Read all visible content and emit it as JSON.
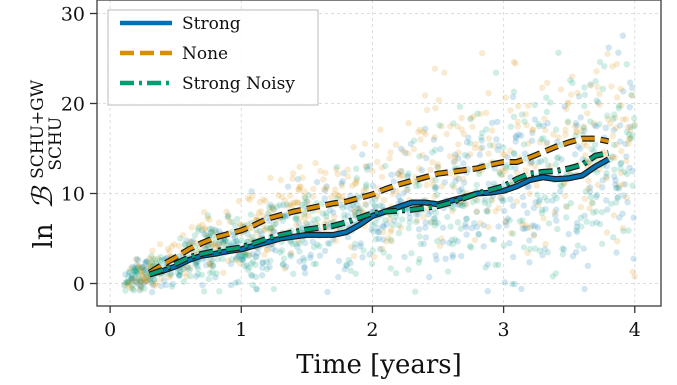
{
  "chart_data": {
    "type": "line",
    "xlabel": "Time [years]",
    "ylabel": {
      "prefix": "ln",
      "symbol": "ℬ",
      "superscript": "SCHU+GW",
      "subscript": "SCHU"
    },
    "xlim": [
      -0.1,
      4.2
    ],
    "ylim": [
      -2.5,
      31.5
    ],
    "xticks": [
      0,
      1,
      2,
      3,
      4
    ],
    "yticks": [
      0,
      10,
      20,
      30
    ],
    "grid": true,
    "legend_position": "top-left",
    "series": [
      {
        "name": "Strong",
        "style": "solid",
        "color": "#0072b2",
        "x": [
          0.3,
          0.4,
          0.5,
          0.6,
          0.7,
          0.8,
          0.9,
          1.0,
          1.1,
          1.2,
          1.3,
          1.4,
          1.5,
          1.6,
          1.7,
          1.8,
          1.9,
          2.0,
          2.1,
          2.2,
          2.3,
          2.4,
          2.5,
          2.6,
          2.7,
          2.8,
          2.9,
          3.0,
          3.1,
          3.2,
          3.3,
          3.4,
          3.5,
          3.6,
          3.7,
          3.8
        ],
        "y": [
          1.0,
          1.4,
          1.9,
          2.6,
          3.1,
          3.3,
          3.6,
          3.8,
          4.2,
          4.6,
          5.0,
          5.2,
          5.4,
          5.4,
          5.4,
          5.7,
          6.5,
          7.5,
          8.0,
          8.5,
          9.0,
          9.0,
          8.8,
          9.2,
          9.6,
          10.0,
          10.1,
          10.3,
          10.8,
          11.5,
          11.8,
          11.6,
          11.7,
          12.0,
          13.0,
          13.8
        ]
      },
      {
        "name": "None",
        "style": "dashed",
        "color": "#d98e04",
        "x": [
          0.3,
          0.4,
          0.5,
          0.6,
          0.7,
          0.8,
          0.9,
          1.0,
          1.1,
          1.2,
          1.3,
          1.4,
          1.5,
          1.6,
          1.7,
          1.8,
          1.9,
          2.0,
          2.1,
          2.2,
          2.3,
          2.4,
          2.5,
          2.6,
          2.7,
          2.8,
          2.9,
          3.0,
          3.1,
          3.2,
          3.3,
          3.4,
          3.5,
          3.6,
          3.7,
          3.8
        ],
        "y": [
          1.2,
          2.1,
          2.9,
          3.8,
          4.5,
          5.1,
          5.5,
          5.9,
          6.5,
          7.2,
          7.6,
          8.0,
          8.3,
          8.6,
          8.9,
          9.1,
          9.5,
          9.9,
          10.5,
          11.0,
          11.4,
          11.8,
          12.2,
          12.4,
          12.6,
          12.8,
          13.2,
          13.5,
          13.5,
          14.0,
          14.6,
          15.2,
          15.7,
          16.1,
          16.1,
          15.8
        ]
      },
      {
        "name": "Strong Noisy",
        "style": "dashdot",
        "color": "#029e73",
        "x": [
          0.3,
          0.4,
          0.5,
          0.6,
          0.7,
          0.8,
          0.9,
          1.0,
          1.1,
          1.2,
          1.3,
          1.4,
          1.5,
          1.6,
          1.7,
          1.8,
          1.9,
          2.0,
          2.1,
          2.2,
          2.3,
          2.4,
          2.5,
          2.6,
          2.7,
          2.8,
          2.9,
          3.0,
          3.1,
          3.2,
          3.3,
          3.4,
          3.5,
          3.6,
          3.7,
          3.8
        ],
        "y": [
          1.0,
          1.5,
          2.2,
          2.9,
          3.3,
          3.6,
          3.8,
          4.0,
          4.5,
          5.0,
          5.4,
          5.7,
          6.0,
          6.2,
          6.4,
          6.8,
          7.3,
          7.8,
          8.0,
          8.1,
          8.2,
          8.4,
          8.6,
          9.0,
          9.5,
          10.0,
          10.4,
          10.8,
          11.6,
          12.2,
          12.4,
          12.5,
          12.8,
          13.2,
          14.2,
          14.5
        ]
      }
    ],
    "scatter_background": {
      "description_values": "per-realisation samples around each series",
      "x_range": [
        0.1,
        4.0
      ],
      "y_range": [
        -1,
        30
      ]
    }
  }
}
